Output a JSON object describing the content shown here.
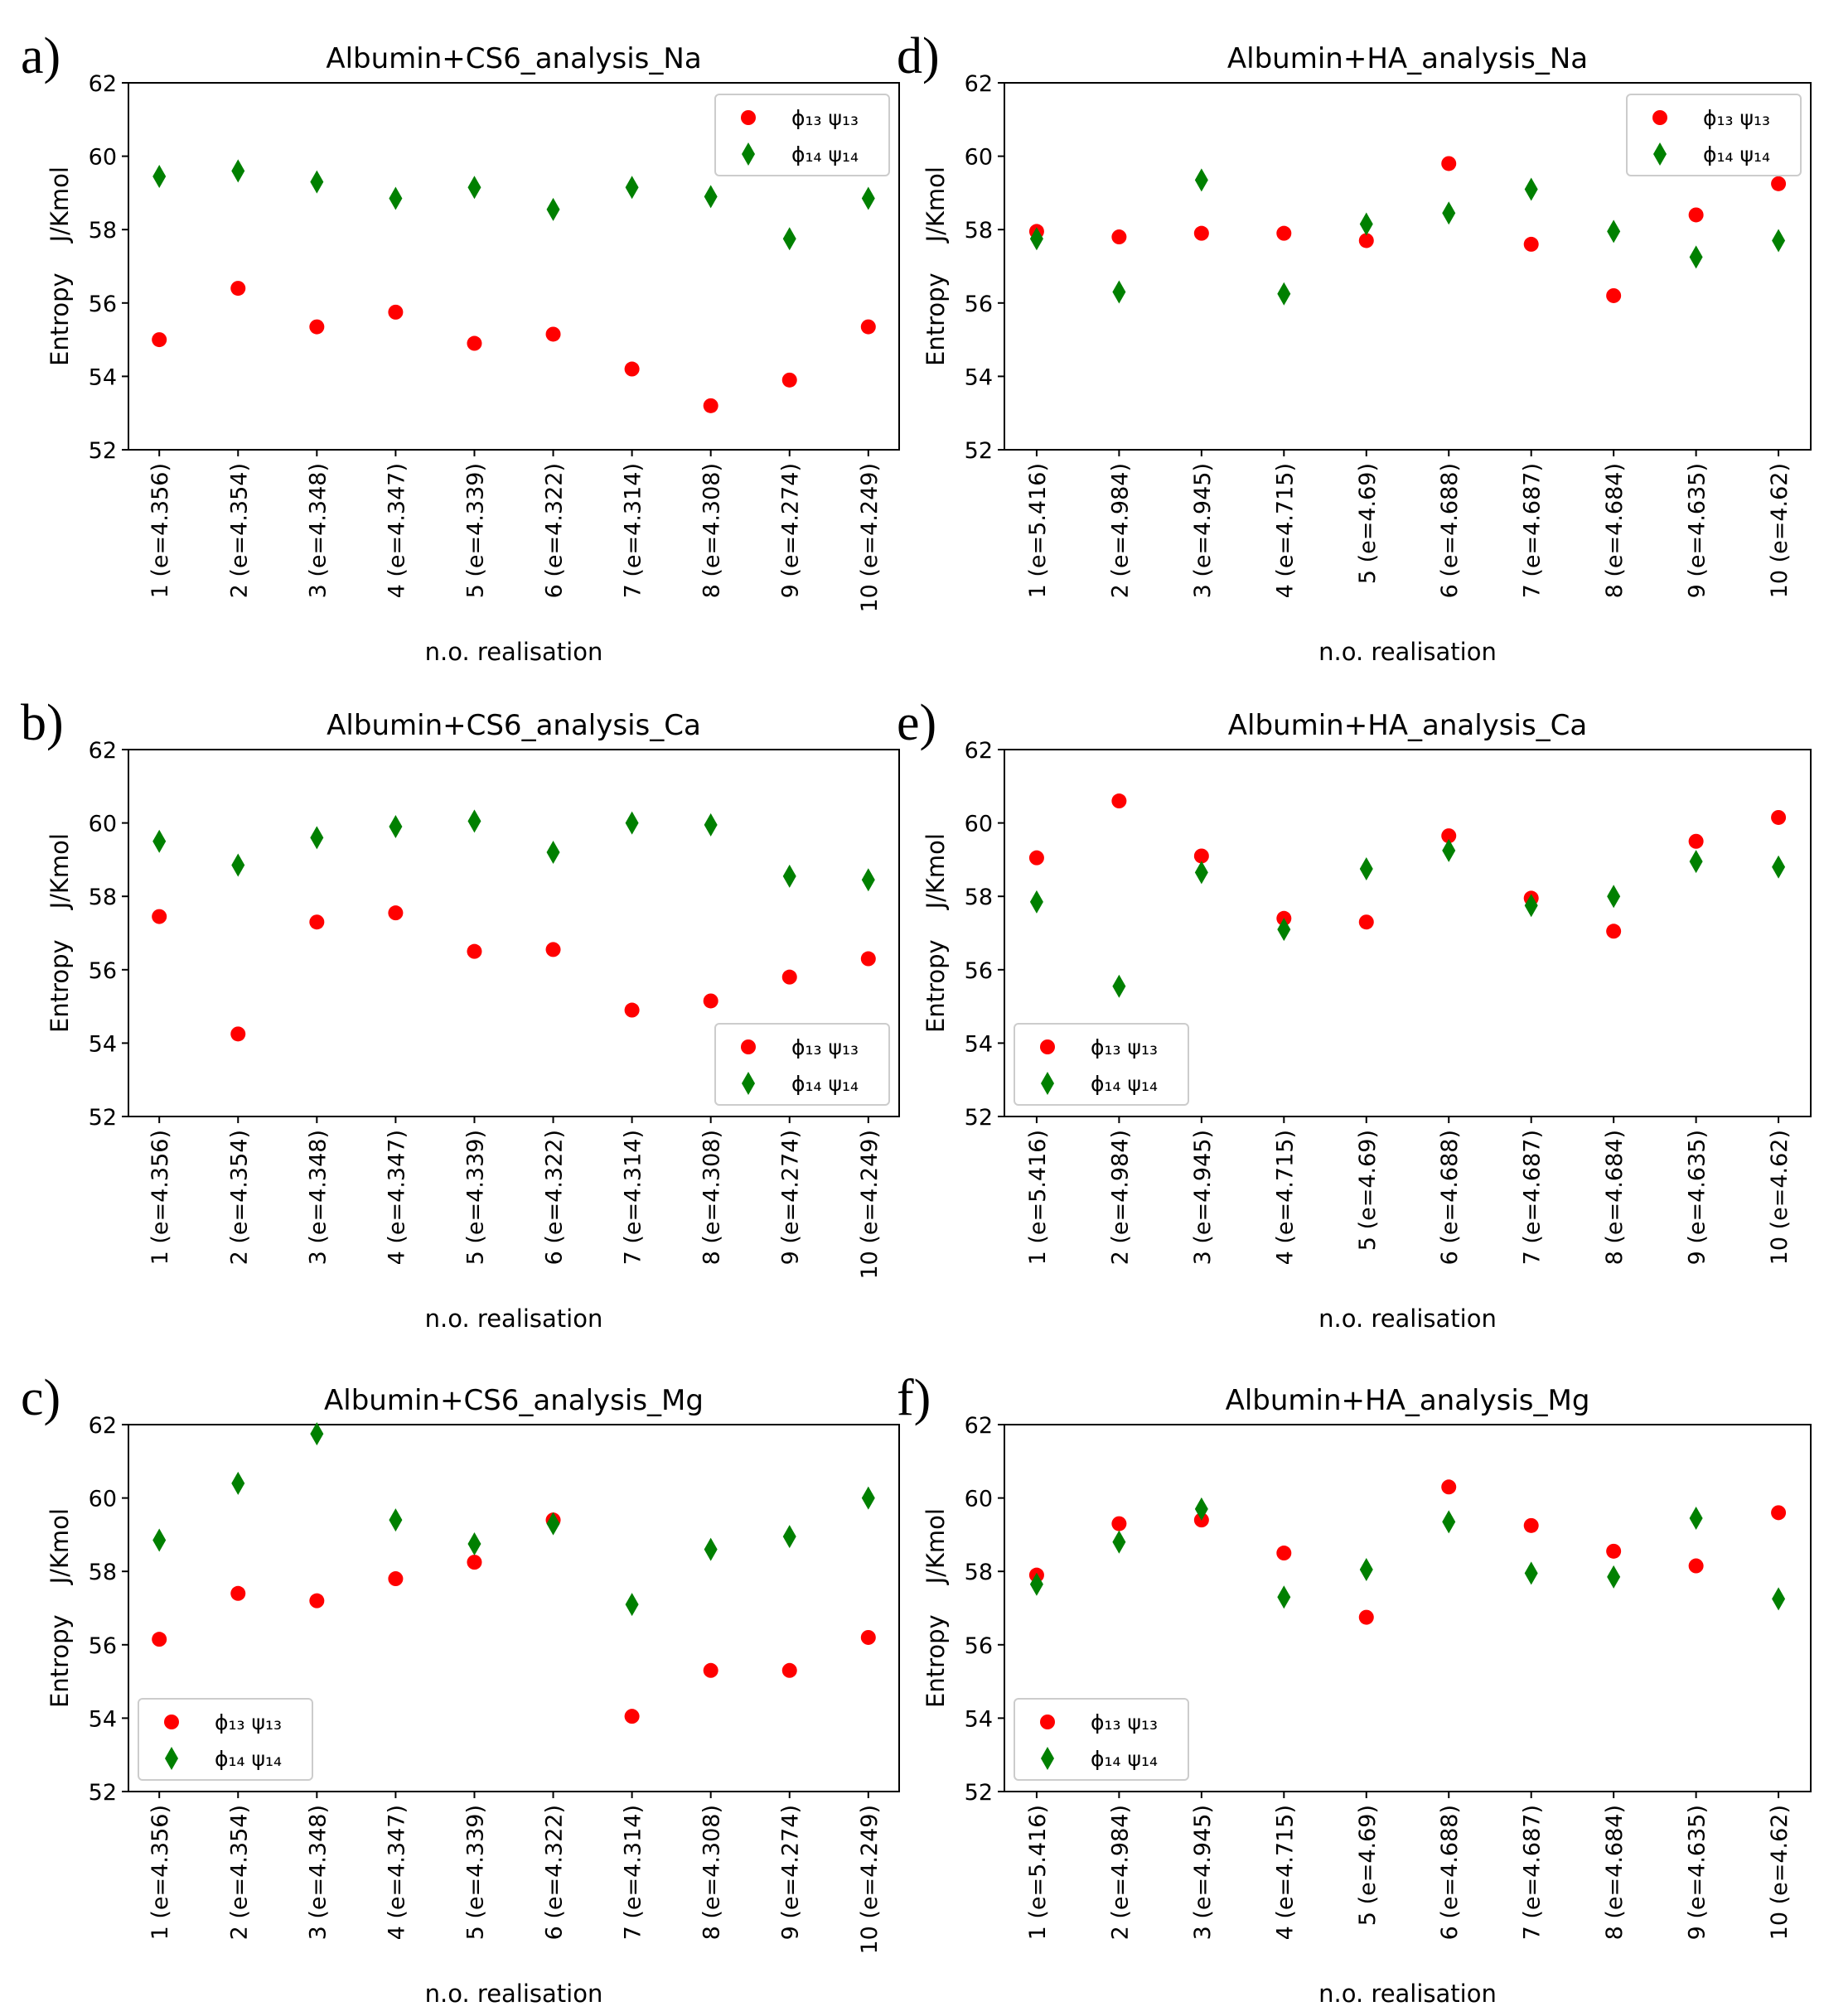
{
  "figure": {
    "layout": "3 rows x 2 columns scatter plots",
    "colors": {
      "series1": "#ff0000",
      "series2": "#008000",
      "axis": "#000000"
    }
  },
  "chart_data": [
    {
      "panel_label": "a)",
      "type": "scatter",
      "title": "Albumin+CS6_analysis_Na",
      "xlabel": "n.o. realisation",
      "ylabel": "Entropy    J/Kmol",
      "ylim": [
        52,
        62
      ],
      "yticks": [
        52,
        54,
        56,
        58,
        60,
        62
      ],
      "categories": [
        "1 (e=4.356)",
        "2 (e=4.354)",
        "3 (e=4.348)",
        "4 (e=4.347)",
        "5 (e=4.339)",
        "6 (e=4.322)",
        "7 (e=4.314)",
        "8 (e=4.308)",
        "9 (e=4.274)",
        "10 (e=4.249)"
      ],
      "legend_position": "top-right",
      "series": [
        {
          "name": "ϕ₁₃ ψ₁₃",
          "marker": "circle",
          "color": "#ff0000",
          "values": [
            55.0,
            56.4,
            55.35,
            55.75,
            54.9,
            55.15,
            54.2,
            53.2,
            53.9,
            55.35
          ]
        },
        {
          "name": "ϕ₁₄ ψ₁₄",
          "marker": "diamond",
          "color": "#008000",
          "values": [
            59.45,
            59.6,
            59.3,
            58.85,
            59.15,
            58.55,
            59.15,
            58.9,
            57.75,
            58.85
          ]
        }
      ]
    },
    {
      "panel_label": "d)",
      "type": "scatter",
      "title": "Albumin+HA_analysis_Na",
      "xlabel": "n.o. realisation",
      "ylabel": "Entropy    J/Kmol",
      "ylim": [
        52,
        62
      ],
      "yticks": [
        52,
        54,
        56,
        58,
        60,
        62
      ],
      "categories": [
        "1 (e=5.416)",
        "2 (e=4.984)",
        "3 (e=4.945)",
        "4 (e=4.715)",
        "5 (e=4.69)",
        "6 (e=4.688)",
        "7 (e=4.687)",
        "8 (e=4.684)",
        "9 (e=4.635)",
        "10 (e=4.62)"
      ],
      "legend_position": "top-right",
      "series": [
        {
          "name": "ϕ₁₃ ψ₁₃",
          "marker": "circle",
          "color": "#ff0000",
          "values": [
            57.95,
            57.8,
            57.9,
            57.9,
            57.7,
            59.8,
            57.6,
            56.2,
            58.4,
            59.25
          ]
        },
        {
          "name": "ϕ₁₄ ψ₁₄",
          "marker": "diamond",
          "color": "#008000",
          "values": [
            57.75,
            56.3,
            59.35,
            56.25,
            58.15,
            58.45,
            59.1,
            57.95,
            57.25,
            57.7
          ]
        }
      ]
    },
    {
      "panel_label": "b)",
      "type": "scatter",
      "title": "Albumin+CS6_analysis_Ca",
      "xlabel": "n.o. realisation",
      "ylabel": "Entropy    J/Kmol",
      "ylim": [
        52,
        62
      ],
      "yticks": [
        52,
        54,
        56,
        58,
        60,
        62
      ],
      "categories": [
        "1 (e=4.356)",
        "2 (e=4.354)",
        "3 (e=4.348)",
        "4 (e=4.347)",
        "5 (e=4.339)",
        "6 (e=4.322)",
        "7 (e=4.314)",
        "8 (e=4.308)",
        "9 (e=4.274)",
        "10 (e=4.249)"
      ],
      "legend_position": "bottom-right",
      "series": [
        {
          "name": "ϕ₁₃ ψ₁₃",
          "marker": "circle",
          "color": "#ff0000",
          "values": [
            57.45,
            54.25,
            57.3,
            57.55,
            56.5,
            56.55,
            54.9,
            55.15,
            55.8,
            56.3
          ]
        },
        {
          "name": "ϕ₁₄ ψ₁₄",
          "marker": "diamond",
          "color": "#008000",
          "values": [
            59.5,
            58.85,
            59.6,
            59.9,
            60.05,
            59.2,
            60.0,
            59.95,
            58.55,
            58.45
          ]
        }
      ]
    },
    {
      "panel_label": "e)",
      "type": "scatter",
      "title": "Albumin+HA_analysis_Ca",
      "xlabel": "n.o. realisation",
      "ylabel": "Entropy    J/Kmol",
      "ylim": [
        52,
        62
      ],
      "yticks": [
        52,
        54,
        56,
        58,
        60,
        62
      ],
      "categories": [
        "1 (e=5.416)",
        "2 (e=4.984)",
        "3 (e=4.945)",
        "4 (e=4.715)",
        "5 (e=4.69)",
        "6 (e=4.688)",
        "7 (e=4.687)",
        "8 (e=4.684)",
        "9 (e=4.635)",
        "10 (e=4.62)"
      ],
      "legend_position": "bottom-left",
      "series": [
        {
          "name": "ϕ₁₃ ψ₁₃",
          "marker": "circle",
          "color": "#ff0000",
          "values": [
            59.05,
            60.6,
            59.1,
            57.4,
            57.3,
            59.65,
            57.95,
            57.05,
            59.5,
            60.15
          ]
        },
        {
          "name": "ϕ₁₄ ψ₁₄",
          "marker": "diamond",
          "color": "#008000",
          "values": [
            57.85,
            55.55,
            58.65,
            57.1,
            58.75,
            59.25,
            57.75,
            58.0,
            58.95,
            58.8
          ]
        }
      ]
    },
    {
      "panel_label": "c)",
      "type": "scatter",
      "title": "Albumin+CS6_analysis_Mg",
      "xlabel": "n.o. realisation",
      "ylabel": "Entropy    J/Kmol",
      "ylim": [
        52,
        62
      ],
      "yticks": [
        52,
        54,
        56,
        58,
        60,
        62
      ],
      "categories": [
        "1 (e=4.356)",
        "2 (e=4.354)",
        "3 (e=4.348)",
        "4 (e=4.347)",
        "5 (e=4.339)",
        "6 (e=4.322)",
        "7 (e=4.314)",
        "8 (e=4.308)",
        "9 (e=4.274)",
        "10 (e=4.249)"
      ],
      "legend_position": "bottom-left",
      "series": [
        {
          "name": "ϕ₁₃ ψ₁₃",
          "marker": "circle",
          "color": "#ff0000",
          "values": [
            56.15,
            57.4,
            57.2,
            57.8,
            58.25,
            59.4,
            54.05,
            55.3,
            55.3,
            56.2
          ]
        },
        {
          "name": "ϕ₁₄ ψ₁₄",
          "marker": "diamond",
          "color": "#008000",
          "values": [
            58.85,
            60.4,
            61.75,
            59.4,
            58.75,
            59.3,
            57.1,
            58.6,
            58.95,
            60.0
          ]
        }
      ]
    },
    {
      "panel_label": "f)",
      "type": "scatter",
      "title": "Albumin+HA_analysis_Mg",
      "xlabel": "n.o. realisation",
      "ylabel": "Entropy    J/Kmol",
      "ylim": [
        52,
        62
      ],
      "yticks": [
        52,
        54,
        56,
        58,
        60,
        62
      ],
      "categories": [
        "1 (e=5.416)",
        "2 (e=4.984)",
        "3 (e=4.945)",
        "4 (e=4.715)",
        "5 (e=4.69)",
        "6 (e=4.688)",
        "7 (e=4.687)",
        "8 (e=4.684)",
        "9 (e=4.635)",
        "10 (e=4.62)"
      ],
      "legend_position": "bottom-left",
      "series": [
        {
          "name": "ϕ₁₃ ψ₁₃",
          "marker": "circle",
          "color": "#ff0000",
          "values": [
            57.9,
            59.3,
            59.4,
            58.5,
            56.75,
            60.3,
            59.25,
            58.55,
            58.15,
            59.6
          ]
        },
        {
          "name": "ϕ₁₄ ψ₁₄",
          "marker": "diamond",
          "color": "#008000",
          "values": [
            57.65,
            58.8,
            59.7,
            57.3,
            58.05,
            59.35,
            57.95,
            57.85,
            59.45,
            57.25
          ]
        }
      ]
    }
  ]
}
